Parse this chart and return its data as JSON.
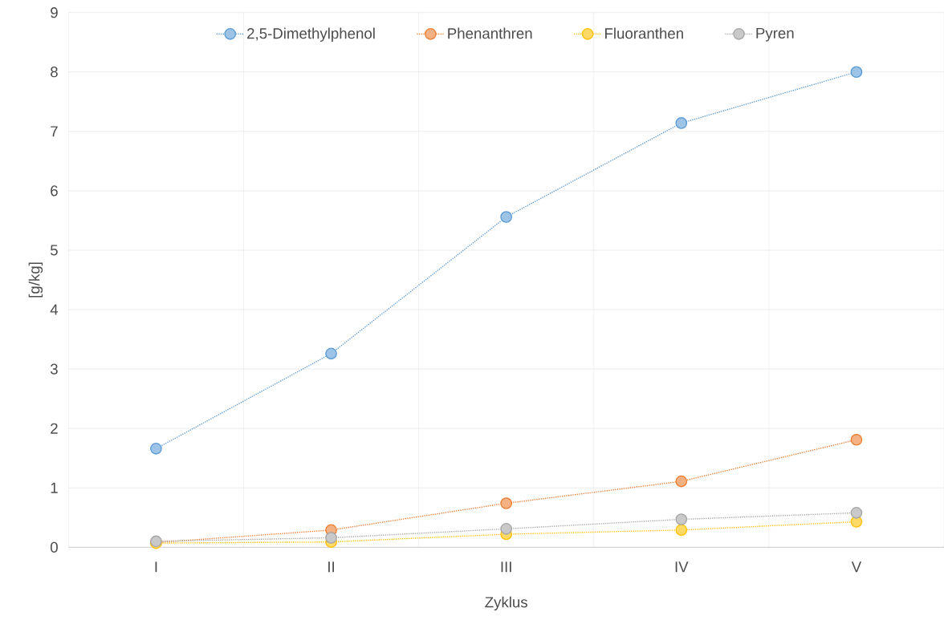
{
  "chart_data": {
    "type": "line",
    "xlabel": "Zyklus",
    "ylabel": "[g/kg]",
    "categories": [
      "I",
      "II",
      "III",
      "IV",
      "V"
    ],
    "series": [
      {
        "name": "2,5-Dimethylphenol",
        "color": "#5b9bd5",
        "values": [
          1.66,
          3.26,
          5.56,
          7.14,
          8.0
        ]
      },
      {
        "name": "Phenanthren",
        "color": "#ed7d31",
        "values": [
          0.08,
          0.29,
          0.74,
          1.11,
          1.81
        ]
      },
      {
        "name": "Fluoranthen",
        "color": "#ffc000",
        "values": [
          0.07,
          0.09,
          0.22,
          0.29,
          0.43
        ]
      },
      {
        "name": "Pyren",
        "color": "#a5a5a5",
        "values": [
          0.1,
          0.16,
          0.31,
          0.47,
          0.58
        ]
      }
    ],
    "ylim": [
      0,
      9
    ],
    "yticks": [
      0,
      1,
      2,
      3,
      4,
      5,
      6,
      7,
      8,
      9
    ],
    "grid": true,
    "legend": "top",
    "marker": "circle",
    "line_style": "dotted"
  }
}
